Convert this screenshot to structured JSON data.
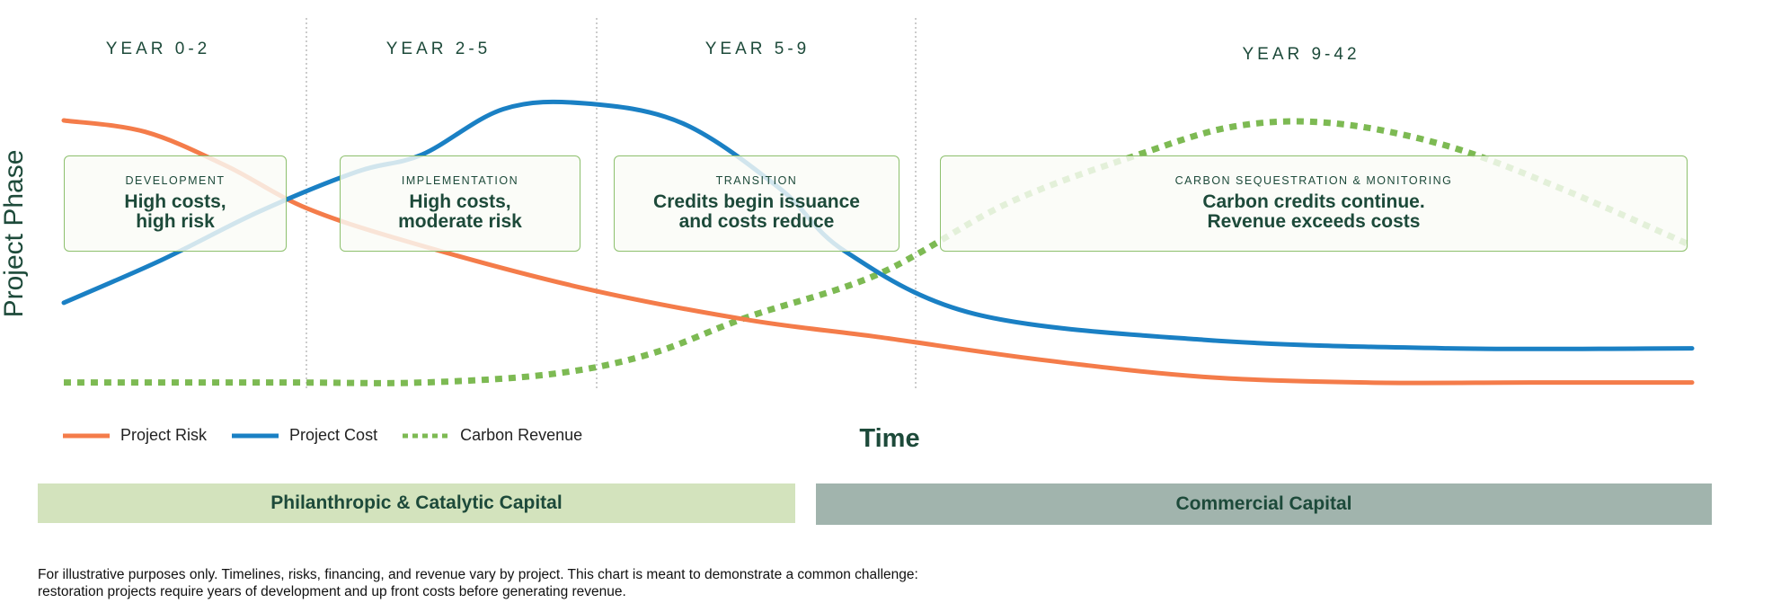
{
  "chart_data": {
    "type": "line",
    "title": "",
    "xlabel": "Time",
    "ylabel": "Project Phase",
    "phases": [
      {
        "range": "YEAR 0-2",
        "tag": "DEVELOPMENT",
        "desc": "High costs,\nhigh risk"
      },
      {
        "range": "YEAR 2-5",
        "tag": "IMPLEMENTATION",
        "desc": "High costs,\nmoderate risk"
      },
      {
        "range": "YEAR 5-9",
        "tag": "TRANSITION",
        "desc": "Credits begin issuance\nand costs reduce"
      },
      {
        "range": "YEAR 9-42",
        "tag": "CARBON SEQUESTRATION & MONITORING",
        "desc": "Carbon credits continue.\nRevenue exceeds costs"
      }
    ],
    "series": [
      {
        "name": "Project Risk",
        "color": "#f47c4a",
        "style": "solid",
        "x": [
          0,
          0.05,
          0.1,
          0.15,
          0.22,
          0.32,
          0.42,
          0.5,
          0.6,
          0.7,
          0.8,
          0.9,
          1.0
        ],
        "y": [
          0.94,
          0.9,
          0.78,
          0.63,
          0.5,
          0.35,
          0.24,
          0.18,
          0.1,
          0.04,
          0.02,
          0.02,
          0.02
        ]
      },
      {
        "name": "Project Cost",
        "color": "#1a80c4",
        "style": "solid",
        "x": [
          0,
          0.06,
          0.12,
          0.18,
          0.22,
          0.27,
          0.32,
          0.38,
          0.44,
          0.48,
          0.56,
          0.7,
          0.85,
          1.0
        ],
        "y": [
          0.3,
          0.45,
          0.62,
          0.76,
          0.82,
          0.98,
          1.0,
          0.93,
          0.7,
          0.48,
          0.26,
          0.17,
          0.14,
          0.14
        ]
      },
      {
        "name": "Carbon Revenue",
        "color": "#7dba53",
        "style": "dotted",
        "x": [
          0,
          0.14,
          0.22,
          0.3,
          0.36,
          0.42,
          0.5,
          0.58,
          0.66,
          0.72,
          0.78,
          0.85,
          0.92,
          1.0
        ],
        "y": [
          0.02,
          0.02,
          0.02,
          0.05,
          0.12,
          0.25,
          0.4,
          0.65,
          0.82,
          0.92,
          0.93,
          0.85,
          0.7,
          0.5
        ]
      }
    ],
    "grid": false
  },
  "legend": {
    "items": [
      {
        "label": "Project Risk",
        "color": "#f47c4a",
        "style": "solid"
      },
      {
        "label": "Project Cost",
        "color": "#1a80c4",
        "style": "solid"
      },
      {
        "label": "Carbon Revenue",
        "color": "#7dba53",
        "style": "dotted"
      }
    ]
  },
  "capital": {
    "left": {
      "label": "Philanthropic & Catalytic Capital",
      "color": "#d3e3bd"
    },
    "right": {
      "label": "Commercial Capital",
      "color": "#a1b4ad"
    }
  },
  "footnote": "For illustrative purposes only. Timelines, risks, financing, and revenue vary by project. This chart is meant to demonstrate a common challenge: restoration projects require years of development and up front costs before generating revenue."
}
